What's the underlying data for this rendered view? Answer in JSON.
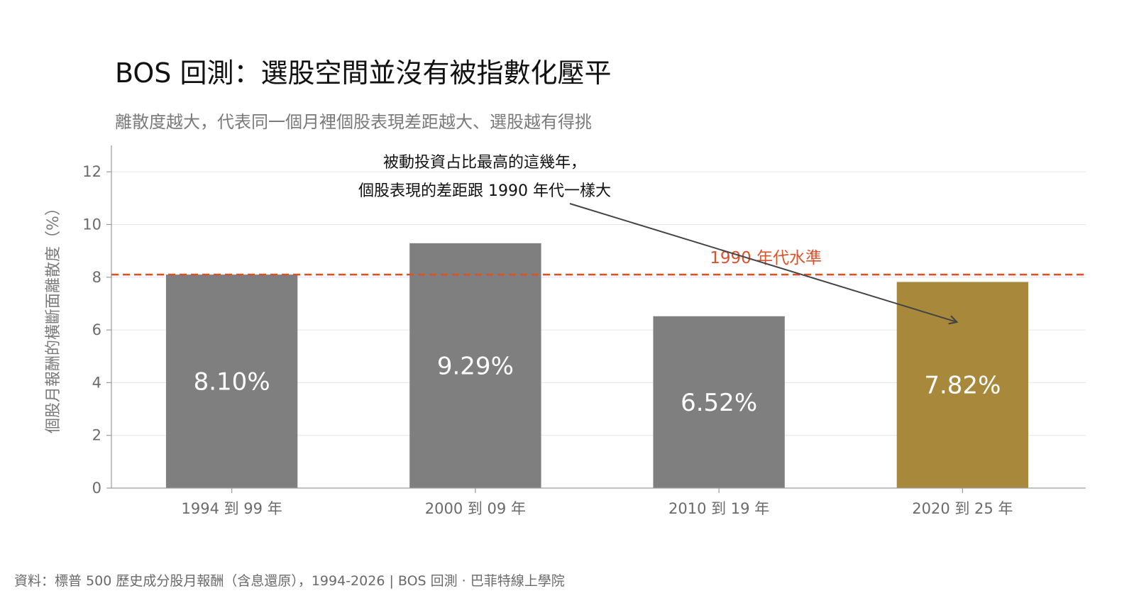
{
  "title": "BOS 回測：選股空間並沒有被指數化壓平",
  "subtitle": "離散度越大，代表同一個月裡個股表現差距越大、選股越有得挑",
  "footer": "資料：標普 500 歷史成分股月報酬（含息還原），1994-2026 | BOS 回測 ·  巴菲特線上學院",
  "colors": {
    "bar": "#7f7f7f",
    "highlight": "#a8893c",
    "reference": "#d9532c",
    "grid": "#e6e6e6",
    "axis": "#9a9a9a",
    "arrow": "#444444"
  },
  "chart_data": {
    "type": "bar",
    "categories": [
      "1994 到 99 年",
      "2000 到 09 年",
      "2010 到 19 年",
      "2020 到 25 年"
    ],
    "values": [
      8.1,
      9.29,
      6.52,
      7.82
    ],
    "value_labels": [
      "8.10%",
      "9.29%",
      "6.52%",
      "7.82%"
    ],
    "highlight_index": 3,
    "ylabel": "個股月報酬的橫斷面離散度（%）",
    "ylim": [
      0,
      13
    ],
    "yticks": [
      0,
      2,
      4,
      6,
      8,
      10,
      12
    ],
    "grid": true,
    "reference_line": {
      "value": 8.1,
      "label": "1990 年代水準",
      "style": "dashed"
    },
    "annotation": {
      "lines": [
        "被動投資占比最高的這幾年，",
        "個股表現的差距跟 1990 年代一樣大"
      ],
      "arrow_target": {
        "category_index": 3,
        "value": 6.3
      }
    }
  }
}
